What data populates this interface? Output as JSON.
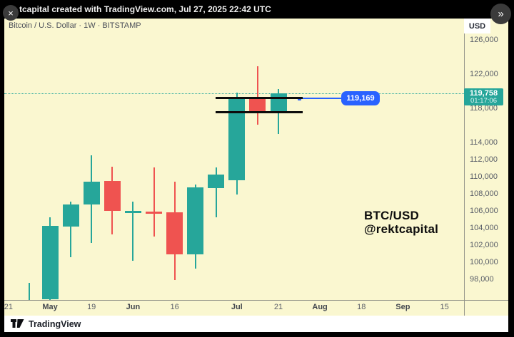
{
  "top_bar": {
    "title": "tcapital created with TradingView.com, Jul 27, 2025 22:42 UTC",
    "close_label": "×",
    "expand_label": "»"
  },
  "chart": {
    "legend": "Bitcoin / U.S. Dollar · 1W · BITSTAMP",
    "axis_currency": "USD",
    "price_badge": {
      "price": "119,758",
      "countdown": "01:17:06"
    },
    "callout_label": "119,169",
    "watermark_line1": "BTC/USD",
    "watermark_line2": "@rektcapital"
  },
  "footer": {
    "brand": "TradingView"
  },
  "chart_data": {
    "type": "candlestick",
    "title": "Bitcoin / U.S. Dollar",
    "interval": "1W",
    "exchange": "BITSTAMP",
    "legend_position": "top-left",
    "grid": false,
    "colors": {
      "up": "#26a69a",
      "down": "#ef5350",
      "current_price_line": "#2da99e",
      "callout": "#2962ff",
      "drawn_level": "#0c0c0c"
    },
    "y_axis": {
      "currency": "USD",
      "visible_ticks": [
        126000,
        122000,
        118000,
        114000,
        112000,
        110000,
        108000,
        106000,
        104000,
        102000,
        100000,
        98000
      ]
    },
    "x_axis": {
      "labels": [
        {
          "label": "21",
          "week_index": -1
        },
        {
          "label": "May",
          "week_index": 1
        },
        {
          "label": "19",
          "week_index": 3
        },
        {
          "label": "Jun",
          "week_index": 5
        },
        {
          "label": "16",
          "week_index": 7
        },
        {
          "label": "Jul",
          "week_index": 10
        },
        {
          "label": "21",
          "week_index": 12
        },
        {
          "label": "Aug",
          "week_index": 14
        },
        {
          "label": "18",
          "week_index": 16
        },
        {
          "label": "Sep",
          "week_index": 18
        },
        {
          "label": "15",
          "week_index": 20
        }
      ]
    },
    "candles": [
      {
        "open": 95550,
        "high": 97600,
        "low": 95500,
        "close": 95600
      },
      {
        "open": 95650,
        "high": 105250,
        "low": 95550,
        "close": 104250
      },
      {
        "open": 104150,
        "high": 107100,
        "low": 100600,
        "close": 106750
      },
      {
        "open": 106750,
        "high": 112500,
        "low": 102250,
        "close": 109400
      },
      {
        "open": 109500,
        "high": 111150,
        "low": 103250,
        "close": 106000
      },
      {
        "open": 105950,
        "high": 107100,
        "low": 100150,
        "close": 106000
      },
      {
        "open": 105900,
        "high": 111100,
        "low": 103000,
        "close": 105750
      },
      {
        "open": 105850,
        "high": 109400,
        "low": 97900,
        "close": 100900
      },
      {
        "open": 100900,
        "high": 109100,
        "low": 99250,
        "close": 108750
      },
      {
        "open": 108650,
        "high": 111100,
        "low": 105250,
        "close": 110250
      },
      {
        "open": 109600,
        "high": 119850,
        "low": 107900,
        "close": 119250
      },
      {
        "open": 119250,
        "high": 122900,
        "low": 116100,
        "close": 117500
      },
      {
        "open": 117500,
        "high": 120250,
        "low": 115000,
        "close": 119758
      }
    ],
    "current_price": 119758,
    "countdown": "01:17:06",
    "callout_price": 119169,
    "drawn_levels": [
      119250,
      117550
    ]
  }
}
